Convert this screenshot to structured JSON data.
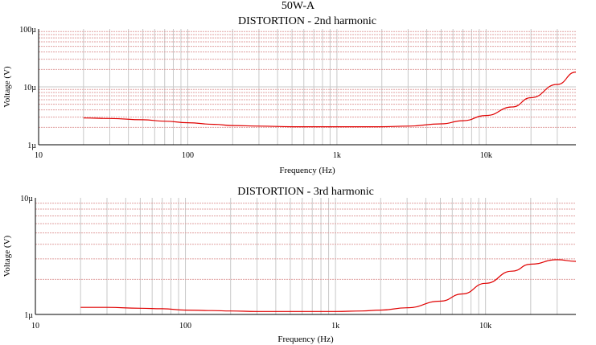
{
  "page": {
    "title": "50W-A"
  },
  "colors": {
    "background": "#ffffff",
    "axis": "#000000",
    "grid_major": "#c8c8c8",
    "grid_minor": "#e0a0a0",
    "series": "#e00000"
  },
  "chart_data": [
    {
      "type": "line",
      "title": "DISTORTION - 2nd harmonic",
      "xlabel": "Frequency (Hz)",
      "ylabel": "Voltage (V)",
      "xscale": "log",
      "yscale": "log",
      "xlim": [
        10,
        40000
      ],
      "ylim": [
        1e-06,
        0.0001
      ],
      "x_ticks": [
        10,
        100,
        1000,
        10000
      ],
      "x_tick_labels": [
        "10",
        "100",
        "1k",
        "10k"
      ],
      "y_ticks": [
        1e-06,
        1e-05,
        0.0001
      ],
      "y_tick_labels": [
        "1µ",
        "10µ",
        "100µ"
      ],
      "grid": true,
      "series": [
        {
          "x": [
            20,
            30,
            50,
            70,
            100,
            150,
            200,
            300,
            500,
            700,
            1000,
            1500,
            2000,
            3000,
            5000,
            7000,
            10000,
            15000,
            20000,
            30000,
            40000
          ],
          "y": [
            2.9e-06,
            2.85e-06,
            2.7e-06,
            2.55e-06,
            2.4e-06,
            2.25e-06,
            2.15e-06,
            2.1e-06,
            2.05e-06,
            2.05e-06,
            2.05e-06,
            2.05e-06,
            2.05e-06,
            2.1e-06,
            2.3e-06,
            2.6e-06,
            3.2e-06,
            4.5e-06,
            6.5e-06,
            1.1e-05,
            1.8e-05
          ]
        }
      ]
    },
    {
      "type": "line",
      "title": "DISTORTION - 3rd harmonic",
      "xlabel": "Frequency (Hz)",
      "ylabel": "Voltage (V)",
      "xscale": "log",
      "yscale": "log",
      "xlim": [
        10,
        40000
      ],
      "ylim": [
        1e-06,
        1e-05
      ],
      "x_ticks": [
        10,
        100,
        1000,
        10000
      ],
      "x_tick_labels": [
        "10",
        "100",
        "1k",
        "10k"
      ],
      "y_ticks": [
        1e-06,
        1e-05
      ],
      "y_tick_labels": [
        "1µ",
        "10µ"
      ],
      "grid": true,
      "series": [
        {
          "x": [
            20,
            30,
            50,
            70,
            100,
            150,
            200,
            300,
            500,
            700,
            1000,
            1500,
            2000,
            3000,
            5000,
            7000,
            10000,
            15000,
            20000,
            30000,
            40000
          ],
          "y": [
            1.15e-06,
            1.15e-06,
            1.13e-06,
            1.12e-06,
            1.09e-06,
            1.08e-06,
            1.07e-06,
            1.06e-06,
            1.06e-06,
            1.06e-06,
            1.06e-06,
            1.07e-06,
            1.09e-06,
            1.14e-06,
            1.3e-06,
            1.5e-06,
            1.85e-06,
            2.35e-06,
            2.7e-06,
            2.95e-06,
            2.85e-06
          ]
        }
      ]
    }
  ]
}
